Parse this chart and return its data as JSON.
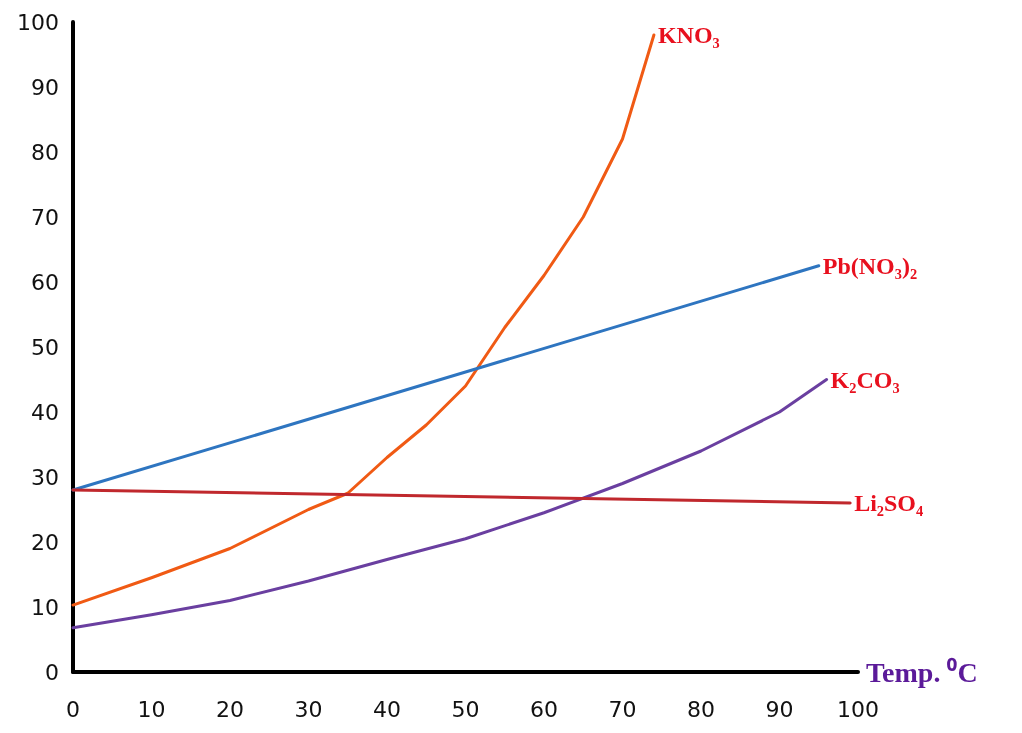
{
  "chart_data": {
    "type": "line",
    "xlabel": "Temp. ⁰C",
    "xlim": [
      0,
      100
    ],
    "xticks": [
      0,
      10,
      20,
      30,
      40,
      50,
      60,
      70,
      80,
      90,
      100
    ],
    "ylim": [
      0,
      100
    ],
    "yticks": [
      0,
      10,
      20,
      30,
      40,
      50,
      60,
      70,
      80,
      90,
      100
    ],
    "grid": false,
    "legend": false,
    "marker": "none",
    "line_style": "solid",
    "series": [
      {
        "name": "KNO₃",
        "color": "#f05a14",
        "x": [
          0,
          10,
          20,
          30,
          35,
          40,
          45,
          50,
          55,
          60,
          65,
          70,
          74
        ],
        "values": [
          10.3,
          14.5,
          19,
          25,
          27.5,
          33,
          38,
          44,
          53,
          61,
          70,
          82,
          98
        ]
      },
      {
        "name": "Pb(NO₃)₂",
        "color": "#2e75c0",
        "x": [
          0,
          95
        ],
        "values": [
          28,
          62.5
        ]
      },
      {
        "name": "K₂CO₃",
        "color": "#6a3fa0",
        "x": [
          0,
          10,
          20,
          30,
          40,
          50,
          60,
          70,
          80,
          90,
          96
        ],
        "values": [
          6.8,
          8.8,
          11,
          14,
          17.3,
          20.5,
          24.5,
          29,
          34,
          40,
          45
        ]
      },
      {
        "name": "Li₂SO₄",
        "color": "#c0282d",
        "x": [
          0,
          99
        ],
        "values": [
          28,
          26
        ]
      }
    ]
  }
}
